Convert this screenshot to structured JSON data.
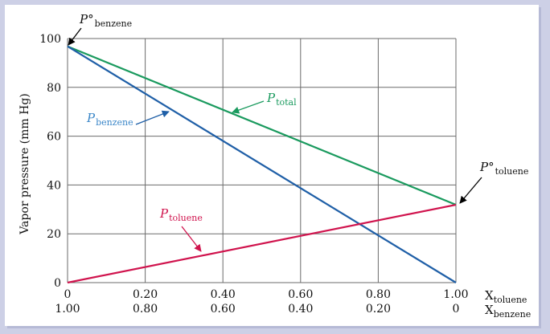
{
  "chart_data": {
    "type": "line",
    "ylabel": "Vapor pressure (mm Hg)",
    "ylim": [
      0,
      100
    ],
    "yticks": [
      "0",
      "20",
      "40",
      "60",
      "80",
      "100"
    ],
    "xlim": [
      0,
      1
    ],
    "x_toluene_ticks": [
      "0",
      "0.20",
      "0.40",
      "0.60",
      "0.80",
      "1.00"
    ],
    "x_benzene_ticks": [
      "1.00",
      "0.80",
      "0.60",
      "0.40",
      "0.20",
      "0"
    ],
    "x_axis_label_1": "X",
    "x_axis_label_1_sub": "toluene",
    "x_axis_label_2": "X",
    "x_axis_label_2_sub": "benzene",
    "grid": true,
    "series": [
      {
        "name": "P",
        "sub": "total",
        "color": "#1a9a5e",
        "x": [
          0,
          1
        ],
        "y": [
          96.8,
          31.9
        ]
      },
      {
        "name": "P",
        "sub": "benzene",
        "color": "#1f5fa7",
        "x": [
          0,
          1
        ],
        "y": [
          96.8,
          0
        ]
      },
      {
        "name": "P",
        "sub": "toluene",
        "color": "#d0134d",
        "x": [
          0,
          1
        ],
        "y": [
          0,
          31.9
        ]
      }
    ],
    "annotations": [
      {
        "text": "P°",
        "sub": "benzene",
        "color": "#000000"
      },
      {
        "text": "P°",
        "sub": "toluene",
        "color": "#000000"
      }
    ]
  }
}
